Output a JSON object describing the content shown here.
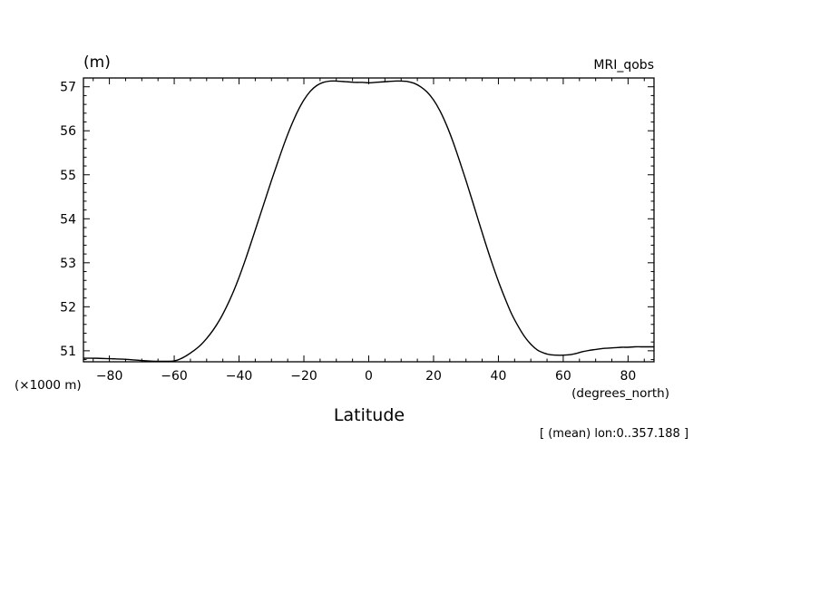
{
  "chart_data": {
    "type": "line",
    "title": "MRI_qobs",
    "unit_label": "(m)",
    "scale_label": "(×1000 m)",
    "xlabel": "Latitude",
    "xunit_label": "(degrees_north)",
    "footnote": "[ (mean) lon:0..357.188 ]",
    "xlim": [
      -88,
      88
    ],
    "ylim": [
      50.75,
      57.2
    ],
    "xticks": [
      -80,
      -60,
      -40,
      -20,
      0,
      20,
      40,
      60,
      80
    ],
    "xtick_labels": [
      "−80",
      "−60",
      "−40",
      "−20",
      "0",
      "20",
      "40",
      "60",
      "80"
    ],
    "yticks": [
      51,
      52,
      53,
      54,
      55,
      56,
      57
    ],
    "ytick_labels": [
      "51",
      "52",
      "53",
      "54",
      "55",
      "56",
      "57"
    ],
    "grid": false,
    "legend": "none",
    "series": [
      {
        "x": [
          -88,
          -84,
          -80,
          -76,
          -72,
          -68,
          -64,
          -60,
          -58,
          -56,
          -54,
          -52,
          -50,
          -48,
          -46,
          -44,
          -42,
          -40,
          -38,
          -36,
          -34,
          -32,
          -30,
          -28,
          -26,
          -24,
          -22,
          -20,
          -18,
          -16,
          -14,
          -12,
          -10,
          -8,
          -6,
          -4,
          -2,
          0,
          2,
          4,
          6,
          8,
          10,
          12,
          14,
          16,
          18,
          20,
          22,
          24,
          26,
          28,
          30,
          32,
          34,
          36,
          38,
          40,
          42,
          44,
          46,
          48,
          50,
          52,
          54,
          56,
          58,
          60,
          62,
          64,
          66,
          68,
          70,
          72,
          74,
          76,
          78,
          80,
          82,
          84,
          86,
          88
        ],
        "values": [
          50.83,
          50.83,
          50.82,
          50.81,
          50.79,
          50.77,
          50.76,
          50.77,
          50.82,
          50.9,
          51.0,
          51.12,
          51.28,
          51.47,
          51.7,
          51.98,
          52.3,
          52.67,
          53.08,
          53.52,
          53.97,
          54.42,
          54.87,
          55.3,
          55.72,
          56.1,
          56.43,
          56.7,
          56.9,
          57.03,
          57.1,
          57.13,
          57.13,
          57.12,
          57.11,
          57.1,
          57.1,
          57.09,
          57.1,
          57.11,
          57.12,
          57.13,
          57.13,
          57.12,
          57.08,
          57.0,
          56.88,
          56.7,
          56.45,
          56.13,
          55.75,
          55.32,
          54.87,
          54.4,
          53.92,
          53.45,
          53.0,
          52.58,
          52.2,
          51.85,
          51.57,
          51.33,
          51.15,
          51.02,
          50.95,
          50.91,
          50.9,
          50.9,
          50.91,
          50.94,
          50.98,
          51.01,
          51.03,
          51.05,
          51.06,
          51.07,
          51.08,
          51.08,
          51.09,
          51.09,
          51.09,
          51.09
        ]
      }
    ]
  }
}
